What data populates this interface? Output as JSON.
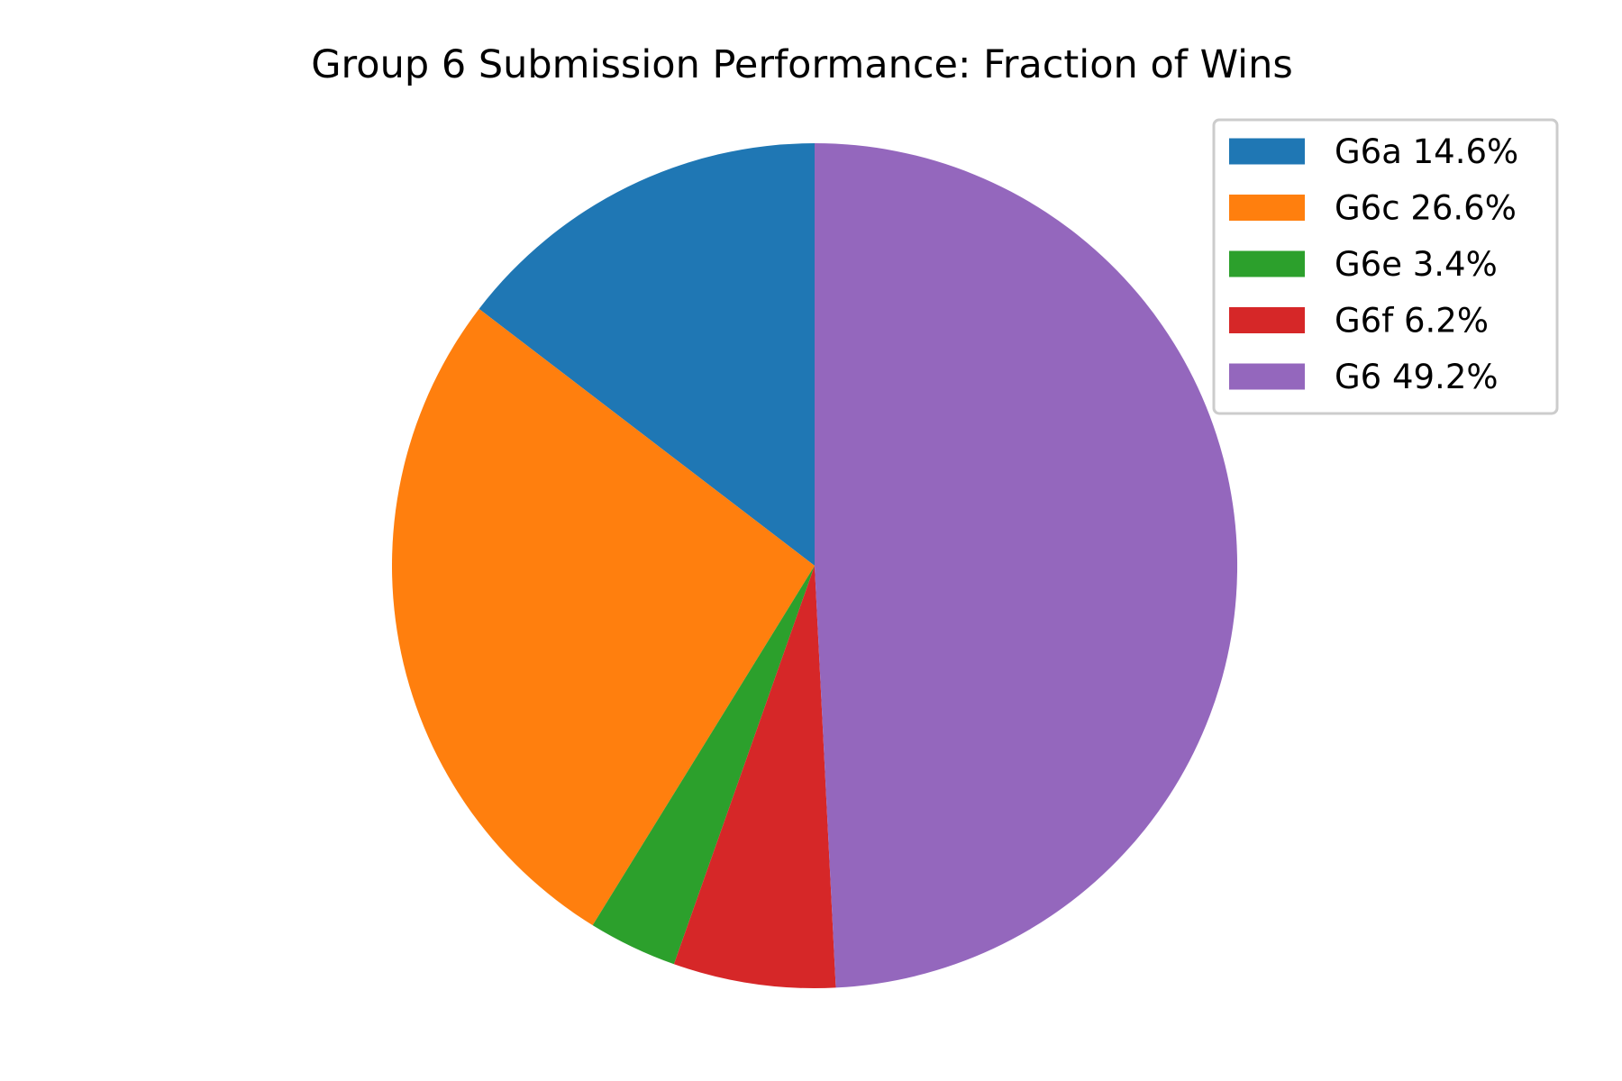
{
  "chart_data": {
    "type": "pie",
    "title": "Group 6 Submission Performance: Fraction of Wins",
    "start_angle_deg": 90,
    "direction": "counterclockwise",
    "legend_position": "upper-right",
    "slices": [
      {
        "label": "G6a 14.6%",
        "value": 14.6,
        "color": "#1f77b4"
      },
      {
        "label": "G6c 26.6%",
        "value": 26.6,
        "color": "#ff7f0e"
      },
      {
        "label": "G6e 3.4%",
        "value": 3.4,
        "color": "#2ca02c"
      },
      {
        "label": "G6f 6.2%",
        "value": 6.2,
        "color": "#d62728"
      },
      {
        "label": "G6 49.2%",
        "value": 49.2,
        "color": "#9467bd"
      }
    ]
  }
}
